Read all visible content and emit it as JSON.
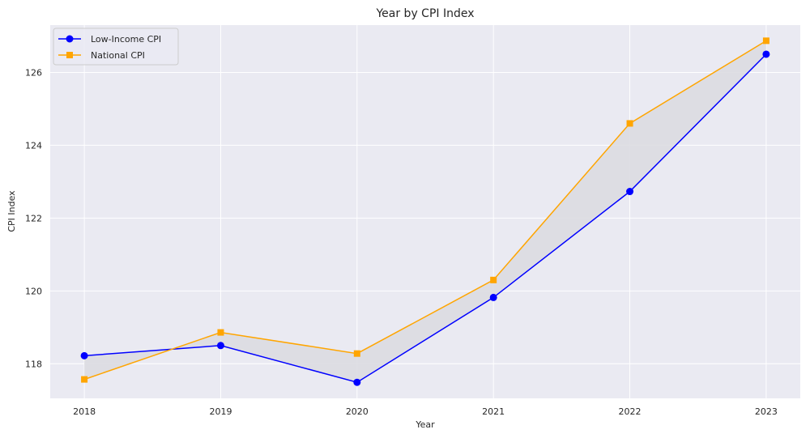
{
  "chart_data": {
    "type": "line",
    "title": "Year by CPI Index",
    "xlabel": "Year",
    "ylabel": "CPI Index",
    "categories": [
      "2018",
      "2019",
      "2020",
      "2021",
      "2022",
      "2023"
    ],
    "xlim": [
      2017.75,
      2023.25
    ],
    "ylim": [
      117.05,
      127.3
    ],
    "yticks": [
      118,
      120,
      122,
      124,
      126
    ],
    "grid": true,
    "legend_position": "top-left",
    "fill_between": true,
    "series": [
      {
        "name": "Low-Income CPI",
        "marker": "circle",
        "color": "#0000ff",
        "values": [
          118.22,
          118.5,
          117.49,
          119.82,
          122.73,
          126.5
        ]
      },
      {
        "name": "National CPI",
        "marker": "square",
        "color": "#ffa500",
        "values": [
          117.57,
          118.86,
          118.28,
          120.3,
          124.6,
          126.87
        ]
      }
    ],
    "colors": {
      "plot_background": "#eaeaf2",
      "grid": "#ffffff",
      "fill": "#dcdbe1",
      "text": "#262626"
    }
  }
}
